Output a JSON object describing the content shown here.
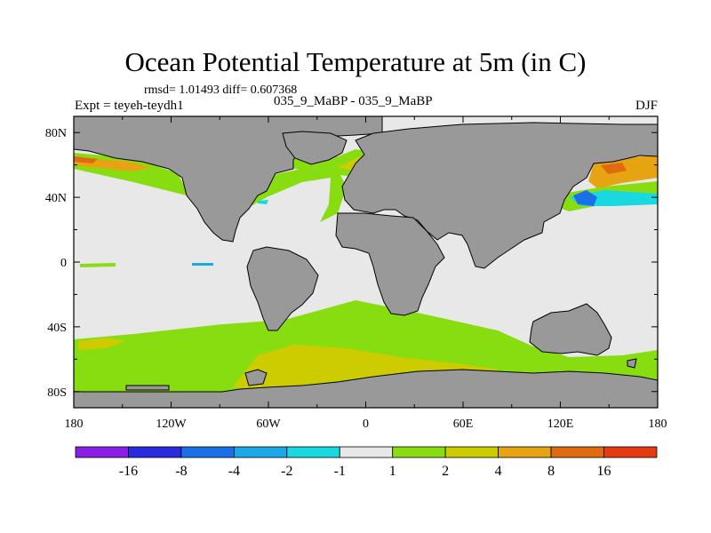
{
  "title": "Ocean Potential Temperature at 5m (in C)",
  "stats": "rmsd= 1.01493 diff= 0.607368",
  "left_label": "Expt = teyeh-teydh1",
  "center_label": "035_9_MaBP - 035_9_MaBP",
  "right_label": "DJF",
  "chart_data": {
    "type": "heatmap",
    "description_fields": {
      "variable": "Ocean potential temperature difference at 5 m",
      "units": "C"
    },
    "x_ticks": [
      "180",
      "120W",
      "60W",
      "0",
      "60E",
      "120E",
      "180"
    ],
    "y_ticks": [
      "80N",
      "40N",
      "0",
      "40S",
      "80S"
    ],
    "xlim": [
      -180,
      180
    ],
    "ylim": [
      -90,
      90
    ],
    "colorbar": {
      "labels": [
        "-16",
        "-8",
        "-4",
        "-2",
        "-1",
        "1",
        "2",
        "4",
        "8",
        "16"
      ],
      "colors": [
        "#8a1ee6",
        "#2a2ae0",
        "#1a70e6",
        "#1aa8e6",
        "#1ad8e0",
        "#e8e8e8",
        "#88dd11",
        "#cccc00",
        "#e6a312",
        "#e06a10",
        "#e63a10"
      ]
    },
    "colors": {
      "land": "#999999",
      "neutral": "#e8e8e8",
      "green": "#88dd11",
      "olive": "#cccc00",
      "orange": "#e6a312",
      "dark_orange": "#e06a10",
      "cyan": "#1ad8e0",
      "blue": "#1a70e6"
    }
  }
}
